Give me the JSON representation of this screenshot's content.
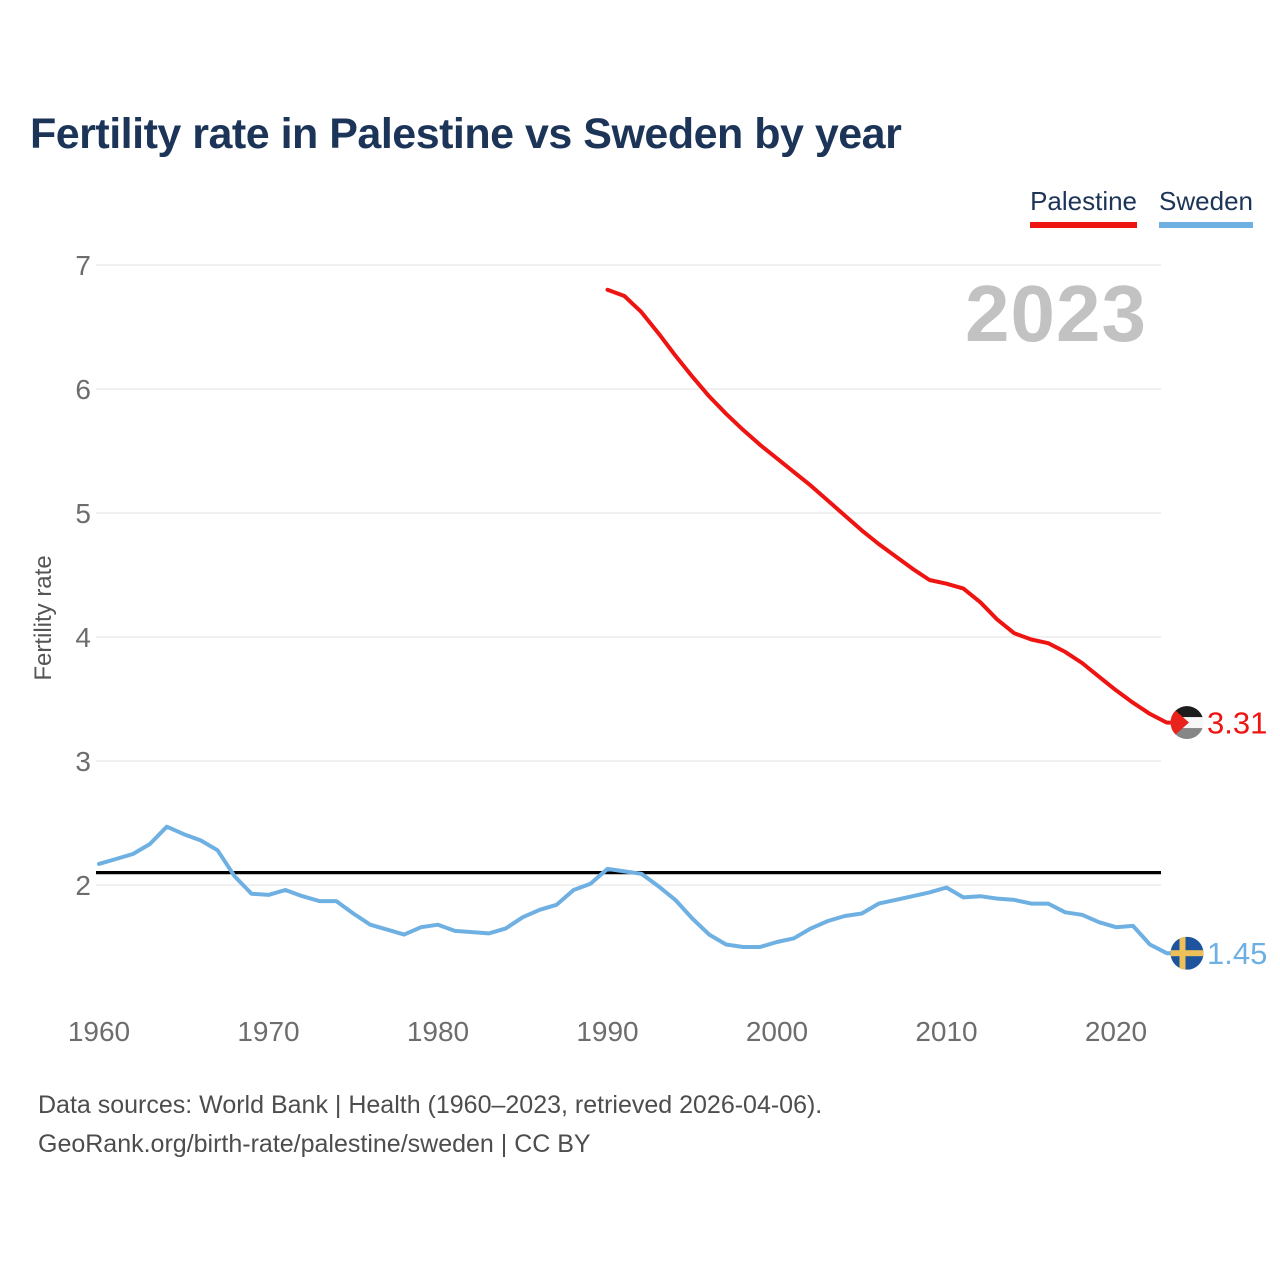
{
  "header": {
    "title": "Fertility rate in Palestine vs Sweden by year"
  },
  "legend": [
    {
      "label": "Palestine",
      "color": "#ee1411"
    },
    {
      "label": "Sweden",
      "color": "#6fb0e2"
    }
  ],
  "watermark": "2023",
  "footer": {
    "line1": "Data sources: World Bank | Health (1960–2023, retrieved 2026-04-06).",
    "line2": "GeoRank.org/birth-rate/palestine/sweden | CC BY"
  },
  "chart_data": {
    "type": "line",
    "title": "Fertility rate in Palestine vs Sweden by year",
    "xlabel": "",
    "ylabel": "Fertility rate",
    "xlim": [
      1960,
      2023
    ],
    "ylim": [
      1.2,
      7.3
    ],
    "xticks": [
      1960,
      1970,
      1980,
      1990,
      2000,
      2010,
      2020
    ],
    "yticks": [
      7,
      6,
      5,
      4,
      3,
      2
    ],
    "grid": "horizontal",
    "legend_position": "top-right",
    "reference_line": {
      "value": 2.1,
      "color": "#000000"
    },
    "series": [
      {
        "name": "Sweden",
        "color": "#6fb0e2",
        "flag": "sweden",
        "end_label": "1.45",
        "points": [
          [
            1960,
            2.17
          ],
          [
            1961,
            2.21
          ],
          [
            1962,
            2.25
          ],
          [
            1963,
            2.33
          ],
          [
            1964,
            2.47
          ],
          [
            1965,
            2.41
          ],
          [
            1966,
            2.36
          ],
          [
            1967,
            2.28
          ],
          [
            1968,
            2.07
          ],
          [
            1969,
            1.93
          ],
          [
            1970,
            1.92
          ],
          [
            1971,
            1.96
          ],
          [
            1972,
            1.91
          ],
          [
            1973,
            1.87
          ],
          [
            1974,
            1.87
          ],
          [
            1975,
            1.77
          ],
          [
            1976,
            1.68
          ],
          [
            1977,
            1.64
          ],
          [
            1978,
            1.6
          ],
          [
            1979,
            1.66
          ],
          [
            1980,
            1.68
          ],
          [
            1981,
            1.63
          ],
          [
            1982,
            1.62
          ],
          [
            1983,
            1.61
          ],
          [
            1984,
            1.65
          ],
          [
            1985,
            1.74
          ],
          [
            1986,
            1.8
          ],
          [
            1987,
            1.84
          ],
          [
            1988,
            1.96
          ],
          [
            1989,
            2.01
          ],
          [
            1990,
            2.13
          ],
          [
            1991,
            2.11
          ],
          [
            1992,
            2.09
          ],
          [
            1993,
            1.99
          ],
          [
            1994,
            1.88
          ],
          [
            1995,
            1.73
          ],
          [
            1996,
            1.6
          ],
          [
            1997,
            1.52
          ],
          [
            1998,
            1.5
          ],
          [
            1999,
            1.5
          ],
          [
            2000,
            1.54
          ],
          [
            2001,
            1.57
          ],
          [
            2002,
            1.65
          ],
          [
            2003,
            1.71
          ],
          [
            2004,
            1.75
          ],
          [
            2005,
            1.77
          ],
          [
            2006,
            1.85
          ],
          [
            2007,
            1.88
          ],
          [
            2008,
            1.91
          ],
          [
            2009,
            1.94
          ],
          [
            2010,
            1.98
          ],
          [
            2011,
            1.9
          ],
          [
            2012,
            1.91
          ],
          [
            2013,
            1.89
          ],
          [
            2014,
            1.88
          ],
          [
            2015,
            1.85
          ],
          [
            2016,
            1.85
          ],
          [
            2017,
            1.78
          ],
          [
            2018,
            1.76
          ],
          [
            2019,
            1.7
          ],
          [
            2020,
            1.66
          ],
          [
            2021,
            1.67
          ],
          [
            2022,
            1.52
          ],
          [
            2023,
            1.45
          ]
        ]
      },
      {
        "name": "Palestine",
        "color": "#ee1411",
        "flag": "palestine",
        "end_label": "3.31",
        "points": [
          [
            1990,
            6.8
          ],
          [
            1991,
            6.75
          ],
          [
            1992,
            6.62
          ],
          [
            1993,
            6.45
          ],
          [
            1994,
            6.27
          ],
          [
            1995,
            6.1
          ],
          [
            1996,
            5.94
          ],
          [
            1997,
            5.8
          ],
          [
            1998,
            5.67
          ],
          [
            1999,
            5.55
          ],
          [
            2000,
            5.44
          ],
          [
            2001,
            5.33
          ],
          [
            2002,
            5.22
          ],
          [
            2003,
            5.1
          ],
          [
            2004,
            4.98
          ],
          [
            2005,
            4.86
          ],
          [
            2006,
            4.75
          ],
          [
            2007,
            4.65
          ],
          [
            2008,
            4.55
          ],
          [
            2009,
            4.46
          ],
          [
            2010,
            4.43
          ],
          [
            2011,
            4.39
          ],
          [
            2012,
            4.28
          ],
          [
            2013,
            4.14
          ],
          [
            2014,
            4.03
          ],
          [
            2015,
            3.98
          ],
          [
            2016,
            3.95
          ],
          [
            2017,
            3.88
          ],
          [
            2018,
            3.79
          ],
          [
            2019,
            3.68
          ],
          [
            2020,
            3.57
          ],
          [
            2021,
            3.47
          ],
          [
            2022,
            3.38
          ],
          [
            2023,
            3.31
          ]
        ]
      }
    ],
    "flag_colors": {
      "palestine": {
        "top": "#1c1c1c",
        "middle": "#f7f7f7",
        "bottom": "#868686",
        "triangle": "#e8231c"
      },
      "sweden": {
        "field": "#1e549e",
        "cross": "#eec05a"
      }
    }
  }
}
